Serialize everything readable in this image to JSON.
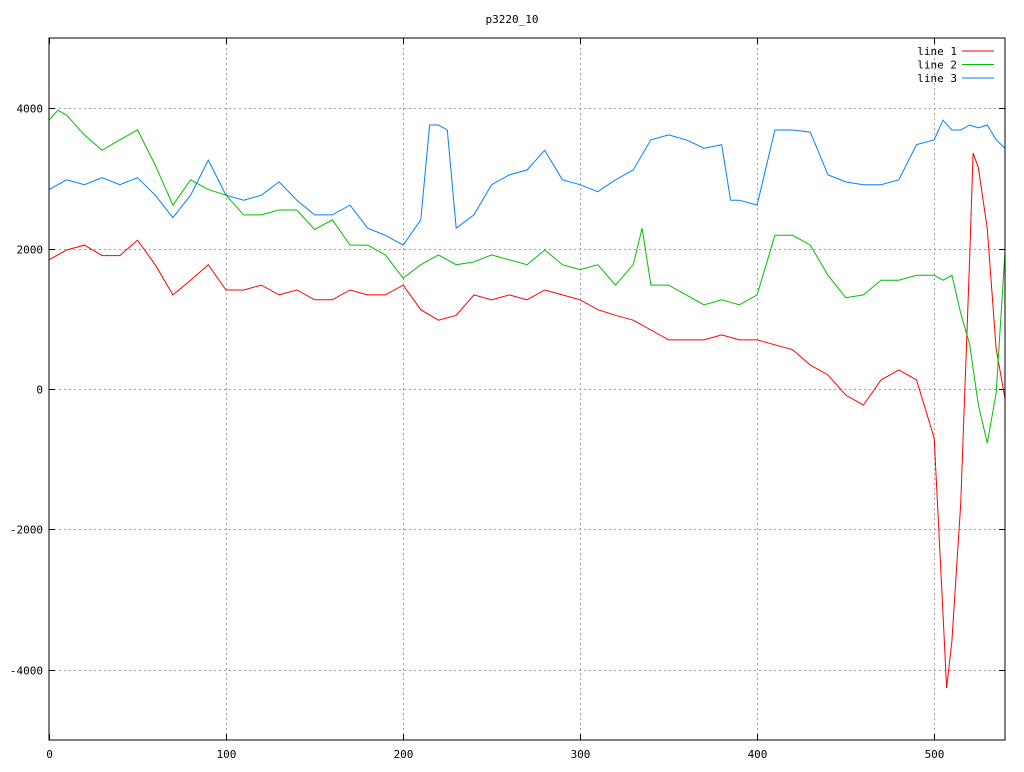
{
  "chart_data": {
    "type": "line",
    "title": "p3220_10",
    "xlabel": "",
    "ylabel": "",
    "xlim": [
      0,
      540
    ],
    "ylim": [
      -5000,
      5000
    ],
    "xticks": [
      0,
      100,
      200,
      300,
      400,
      500
    ],
    "yticks": [
      -4000,
      -2000,
      0,
      2000,
      4000
    ],
    "grid": true,
    "legend_position": "top-right",
    "series": [
      {
        "name": "line 1",
        "color": "#ff0000",
        "x": [
          0,
          10,
          20,
          30,
          40,
          50,
          60,
          70,
          80,
          90,
          100,
          110,
          120,
          130,
          140,
          150,
          160,
          170,
          180,
          190,
          200,
          210,
          220,
          230,
          240,
          250,
          260,
          270,
          280,
          290,
          300,
          310,
          320,
          330,
          340,
          350,
          360,
          370,
          380,
          390,
          400,
          410,
          420,
          430,
          440,
          450,
          460,
          470,
          480,
          490,
          500,
          505,
          507,
          510,
          515,
          520,
          522,
          525,
          530,
          535,
          540
        ],
        "y": [
          1840,
          1980,
          2050,
          1900,
          1900,
          2120,
          1770,
          1340,
          1550,
          1770,
          1410,
          1410,
          1480,
          1340,
          1410,
          1270,
          1270,
          1410,
          1340,
          1340,
          1480,
          1130,
          980,
          1050,
          1340,
          1270,
          1340,
          1270,
          1410,
          1340,
          1270,
          1130,
          1050,
          980,
          840,
          700,
          700,
          700,
          770,
          700,
          700,
          630,
          560,
          340,
          200,
          -85,
          -230,
          130,
          270,
          130,
          -700,
          -3200,
          -4260,
          -3590,
          -1640,
          1840,
          3360,
          3150,
          2280,
          580,
          -140
        ]
      },
      {
        "name": "line 2",
        "color": "#00c000",
        "x": [
          0,
          5,
          10,
          20,
          30,
          40,
          50,
          60,
          70,
          80,
          90,
          100,
          110,
          120,
          130,
          140,
          150,
          160,
          170,
          180,
          190,
          200,
          210,
          220,
          230,
          240,
          250,
          260,
          270,
          280,
          290,
          300,
          310,
          320,
          330,
          335,
          340,
          350,
          360,
          370,
          380,
          390,
          400,
          410,
          420,
          430,
          440,
          450,
          460,
          470,
          480,
          490,
          500,
          505,
          510,
          515,
          520,
          525,
          530,
          535,
          540
        ],
        "y": [
          3830,
          3970,
          3900,
          3620,
          3400,
          3550,
          3690,
          3190,
          2620,
          2980,
          2840,
          2760,
          2480,
          2480,
          2550,
          2550,
          2270,
          2410,
          2050,
          2050,
          1910,
          1580,
          1770,
          1910,
          1770,
          1810,
          1910,
          1840,
          1770,
          1980,
          1770,
          1700,
          1770,
          1480,
          1770,
          2290,
          1480,
          1480,
          1340,
          1200,
          1270,
          1200,
          1340,
          2190,
          2190,
          2050,
          1620,
          1300,
          1340,
          1550,
          1550,
          1620,
          1620,
          1550,
          1620,
          1080,
          640,
          -230,
          -770,
          -60,
          1950
        ]
      },
      {
        "name": "line 3",
        "color": "#0080ff",
        "x": [
          0,
          10,
          20,
          30,
          40,
          50,
          60,
          70,
          80,
          90,
          100,
          110,
          120,
          130,
          140,
          150,
          160,
          170,
          180,
          190,
          200,
          210,
          215,
          220,
          225,
          230,
          240,
          250,
          260,
          270,
          280,
          290,
          300,
          310,
          320,
          330,
          340,
          350,
          360,
          370,
          380,
          385,
          390,
          400,
          410,
          420,
          430,
          440,
          450,
          460,
          470,
          480,
          490,
          500,
          505,
          510,
          515,
          520,
          525,
          530,
          535,
          540
        ],
        "y": [
          2840,
          2980,
          2910,
          3010,
          2910,
          3010,
          2760,
          2440,
          2760,
          3260,
          2760,
          2690,
          2760,
          2950,
          2690,
          2480,
          2480,
          2620,
          2290,
          2190,
          2050,
          2410,
          3760,
          3760,
          3690,
          2290,
          2480,
          2910,
          3050,
          3120,
          3400,
          2980,
          2910,
          2810,
          2980,
          3120,
          3550,
          3620,
          3550,
          3430,
          3480,
          2690,
          2690,
          2620,
          3690,
          3690,
          3660,
          3050,
          2950,
          2910,
          2910,
          2980,
          3480,
          3550,
          3830,
          3690,
          3690,
          3760,
          3720,
          3760,
          3550,
          3430
        ]
      }
    ]
  }
}
